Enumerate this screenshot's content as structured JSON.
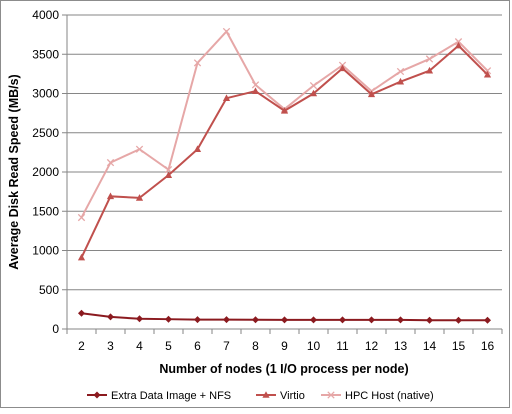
{
  "chart_data": {
    "type": "line",
    "title": "",
    "xlabel": "Number of nodes (1 I/O process per node)",
    "ylabel": "Average Disk Read Speed (MB/s)",
    "x": [
      2,
      3,
      4,
      5,
      6,
      7,
      8,
      9,
      10,
      11,
      12,
      13,
      14,
      15,
      16
    ],
    "ylim": [
      0,
      4000
    ],
    "yticks": [
      0,
      500,
      1000,
      1500,
      2000,
      2500,
      3000,
      3500,
      4000
    ],
    "grid": "horizontal",
    "legend_position": "bottom",
    "series": [
      {
        "name": "Extra Data Image + NFS",
        "color": "#8b1a1f",
        "marker": "diamond",
        "values": [
          200,
          155,
          130,
          125,
          120,
          120,
          118,
          117,
          117,
          117,
          117,
          117,
          112,
          112,
          112
        ]
      },
      {
        "name": "Virtio",
        "color": "#c0504d",
        "marker": "triangle",
        "values": [
          910,
          1690,
          1670,
          1960,
          2290,
          2940,
          3030,
          2780,
          3000,
          3320,
          2990,
          3150,
          3290,
          3610,
          3240
        ]
      },
      {
        "name": "HPC Host (native)",
        "color": "#e6a7a7",
        "marker": "x",
        "values": [
          1420,
          2120,
          2290,
          2030,
          3390,
          3790,
          3110,
          2800,
          3100,
          3360,
          3030,
          3280,
          3440,
          3660,
          3290
        ]
      }
    ]
  }
}
